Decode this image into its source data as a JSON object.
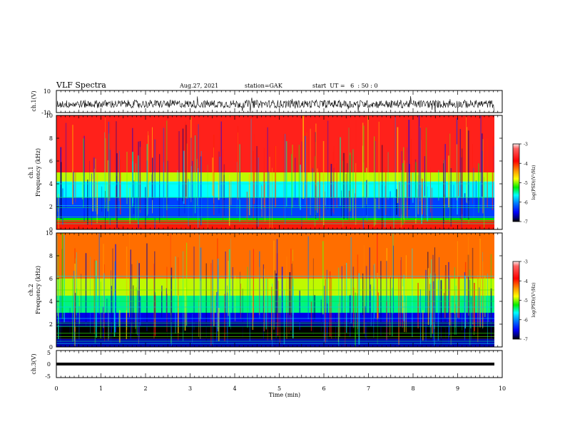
{
  "header": {
    "title": "VLF Spectra",
    "date": "Aug.27, 2021",
    "station": "station=GAK",
    "start_ut": "start  UT =   6  : 50 : 0"
  },
  "chart_data": [
    {
      "type": "line",
      "panel": "ch1-waveform",
      "ylabel": "ch.1(V)",
      "ylim": [
        -10,
        10
      ],
      "yticks": [
        "10",
        "-10"
      ],
      "xlim": [
        0,
        10
      ],
      "series": [
        {
          "values": [
            0
          ]
        }
      ]
    },
    {
      "type": "heatmap",
      "panel": "ch1-spectrogram",
      "ylabel": "ch.1\nFrequency (kHz)",
      "ylim": [
        0,
        10
      ],
      "yticks": [
        "0",
        "2",
        "4",
        "6",
        "8",
        "10"
      ],
      "xlim": [
        0,
        10
      ],
      "colorbar": {
        "label": "log(PSD)(V²/Hz)",
        "range": [
          -7,
          -3
        ],
        "ticks": [
          "-3",
          "-4",
          "-5",
          "-6",
          "-7"
        ],
        "colormap": [
          "#ff0000",
          "#ff8000",
          "#ffff00",
          "#00ff00",
          "#00ffff",
          "#0080ff",
          "#0000ff",
          "#000080",
          "#000000"
        ]
      },
      "bands_khz": [
        {
          "from": 5.0,
          "to": 10.0,
          "log_psd": -3.2
        },
        {
          "from": 4.2,
          "to": 5.0,
          "log_psd": -4.5
        },
        {
          "from": 2.8,
          "to": 4.2,
          "log_psd": -5.2
        },
        {
          "from": 1.0,
          "to": 2.8,
          "log_psd": -5.9
        },
        {
          "from": 0.8,
          "to": 1.0,
          "log_psd": -4.8
        },
        {
          "from": 0.0,
          "to": 0.8,
          "log_psd": -3.5
        }
      ]
    },
    {
      "type": "heatmap",
      "panel": "ch2-spectrogram",
      "ylabel": "ch.2\nFrequency (kHz)",
      "ylim": [
        0,
        10
      ],
      "yticks": [
        "0",
        "2",
        "4",
        "6",
        "8",
        "10"
      ],
      "xlim": [
        0,
        10
      ],
      "colorbar": {
        "label": "log(PSD)(V²/Hz)",
        "range": [
          -7,
          -3
        ],
        "ticks": [
          "-3",
          "-4",
          "-5",
          "-6",
          "-7"
        ],
        "colormap": [
          "#ff0000",
          "#ff8000",
          "#ffff00",
          "#00ff00",
          "#00ffff",
          "#0080ff",
          "#0000ff",
          "#000080",
          "#000000"
        ]
      },
      "bands_khz": [
        {
          "from": 6.0,
          "to": 10.0,
          "log_psd": -3.9
        },
        {
          "from": 4.5,
          "to": 6.0,
          "log_psd": -4.5
        },
        {
          "from": 3.0,
          "to": 4.5,
          "log_psd": -5.0
        },
        {
          "from": 2.2,
          "to": 3.0,
          "log_psd": -6.3
        },
        {
          "from": 1.8,
          "to": 2.2,
          "log_psd": -6.8
        },
        {
          "from": 0.7,
          "to": 1.8,
          "log_psd": -7.5
        },
        {
          "from": 0.0,
          "to": 0.7,
          "log_psd": -6.6
        }
      ]
    },
    {
      "type": "line",
      "panel": "ch3-waveform",
      "ylabel": "ch.3(V)",
      "ylim": [
        -5,
        5
      ],
      "yticks": [
        "5",
        "0",
        "-5"
      ],
      "xlim": [
        0,
        10
      ],
      "xlabel": "Time (min)",
      "xticks": [
        "0",
        "1",
        "2",
        "3",
        "4",
        "5",
        "6",
        "7",
        "8",
        "9",
        "10"
      ],
      "series": [
        {
          "values": [
            0
          ]
        }
      ]
    }
  ]
}
